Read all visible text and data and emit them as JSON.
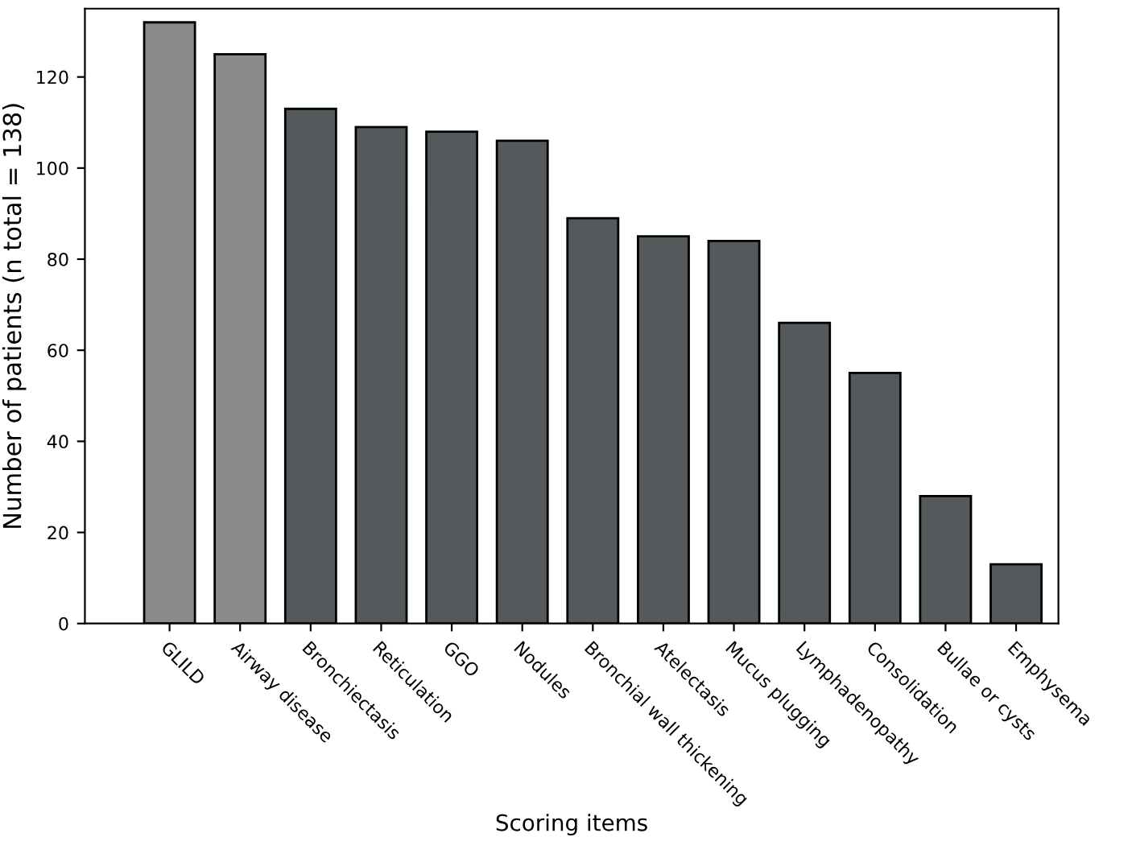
{
  "chart_data": {
    "type": "bar",
    "xlabel": "Scoring items",
    "ylabel": "Number of patients (n total = 138)",
    "categories": [
      "GLILD",
      "Airway disease",
      "Bronchiectasis",
      "Reticulation",
      "GGO",
      "Nodules",
      "Bronchial wall thickening",
      "Atelectasis",
      "Mucus plugging",
      "Lymphadenopathy",
      "Consolidation",
      "Bullae or cysts",
      "Emphysema"
    ],
    "values": [
      132,
      125,
      113,
      109,
      108,
      106,
      89,
      85,
      84,
      66,
      55,
      28,
      13
    ],
    "colors": [
      "#8a8a8a",
      "#8a8a8a",
      "#545a5c",
      "#545a5c",
      "#545a5c",
      "#545a5c",
      "#545a5c",
      "#545a5c",
      "#545a5c",
      "#545a5c",
      "#545a5c",
      "#545a5c",
      "#545a5c"
    ],
    "ylim": [
      0,
      135
    ],
    "yticks": [
      0,
      20,
      40,
      60,
      80,
      100,
      120
    ],
    "grid": false,
    "legend": false
  }
}
